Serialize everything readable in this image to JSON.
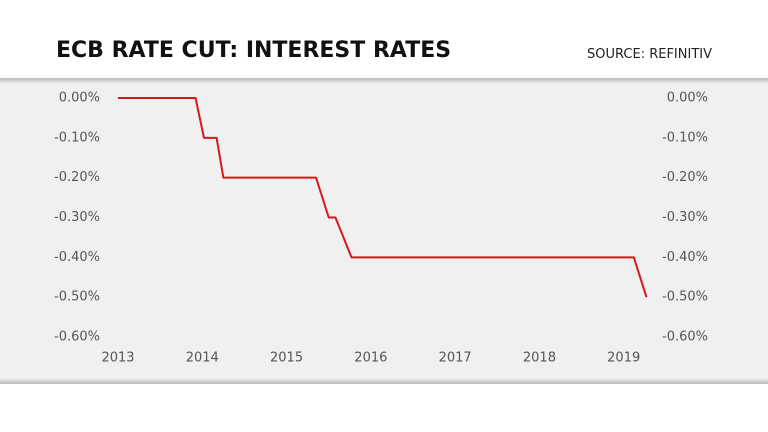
{
  "chart_data": {
    "type": "line",
    "title": "ECB RATE CUT: INTEREST RATES",
    "source": "SOURCE: REFINITIV",
    "x": [
      2013.0,
      2013.92,
      2014.02,
      2014.17,
      2014.25,
      2015.35,
      2015.5,
      2015.58,
      2015.77,
      2019.12,
      2019.27
    ],
    "values": [
      0,
      0,
      -0.1,
      -0.1,
      -0.2,
      -0.2,
      -0.3,
      -0.3,
      -0.4,
      -0.4,
      -0.5
    ],
    "color": "#d7191c",
    "xlim": [
      2013,
      2019.3
    ],
    "xticks": [
      2013,
      2014,
      2015,
      2016,
      2017,
      2018,
      2019
    ],
    "ylim": [
      -0.6,
      0
    ],
    "yticks": [
      {
        "value": 0,
        "label": "0.00%"
      },
      {
        "value": -0.1,
        "label": "-0.10%"
      },
      {
        "value": -0.2,
        "label": "-0.20%"
      },
      {
        "value": -0.3,
        "label": "-0.30%"
      },
      {
        "value": -0.4,
        "label": "-0.40%"
      },
      {
        "value": -0.5,
        "label": "-0.50%"
      },
      {
        "value": -0.6,
        "label": "-0.60%"
      }
    ],
    "y2lim": [
      -0.6,
      0
    ],
    "y2ticks": [
      {
        "value": 0,
        "label": "0.00%"
      },
      {
        "value": -0.1,
        "label": "-0.10%"
      },
      {
        "value": -0.2,
        "label": "-0.20%"
      },
      {
        "value": -0.3,
        "label": "-0.30%"
      },
      {
        "value": -0.4,
        "label": "-0.40%"
      },
      {
        "value": -0.5,
        "label": "-0.50%"
      },
      {
        "value": -0.6,
        "label": "-0.60%"
      }
    ]
  }
}
